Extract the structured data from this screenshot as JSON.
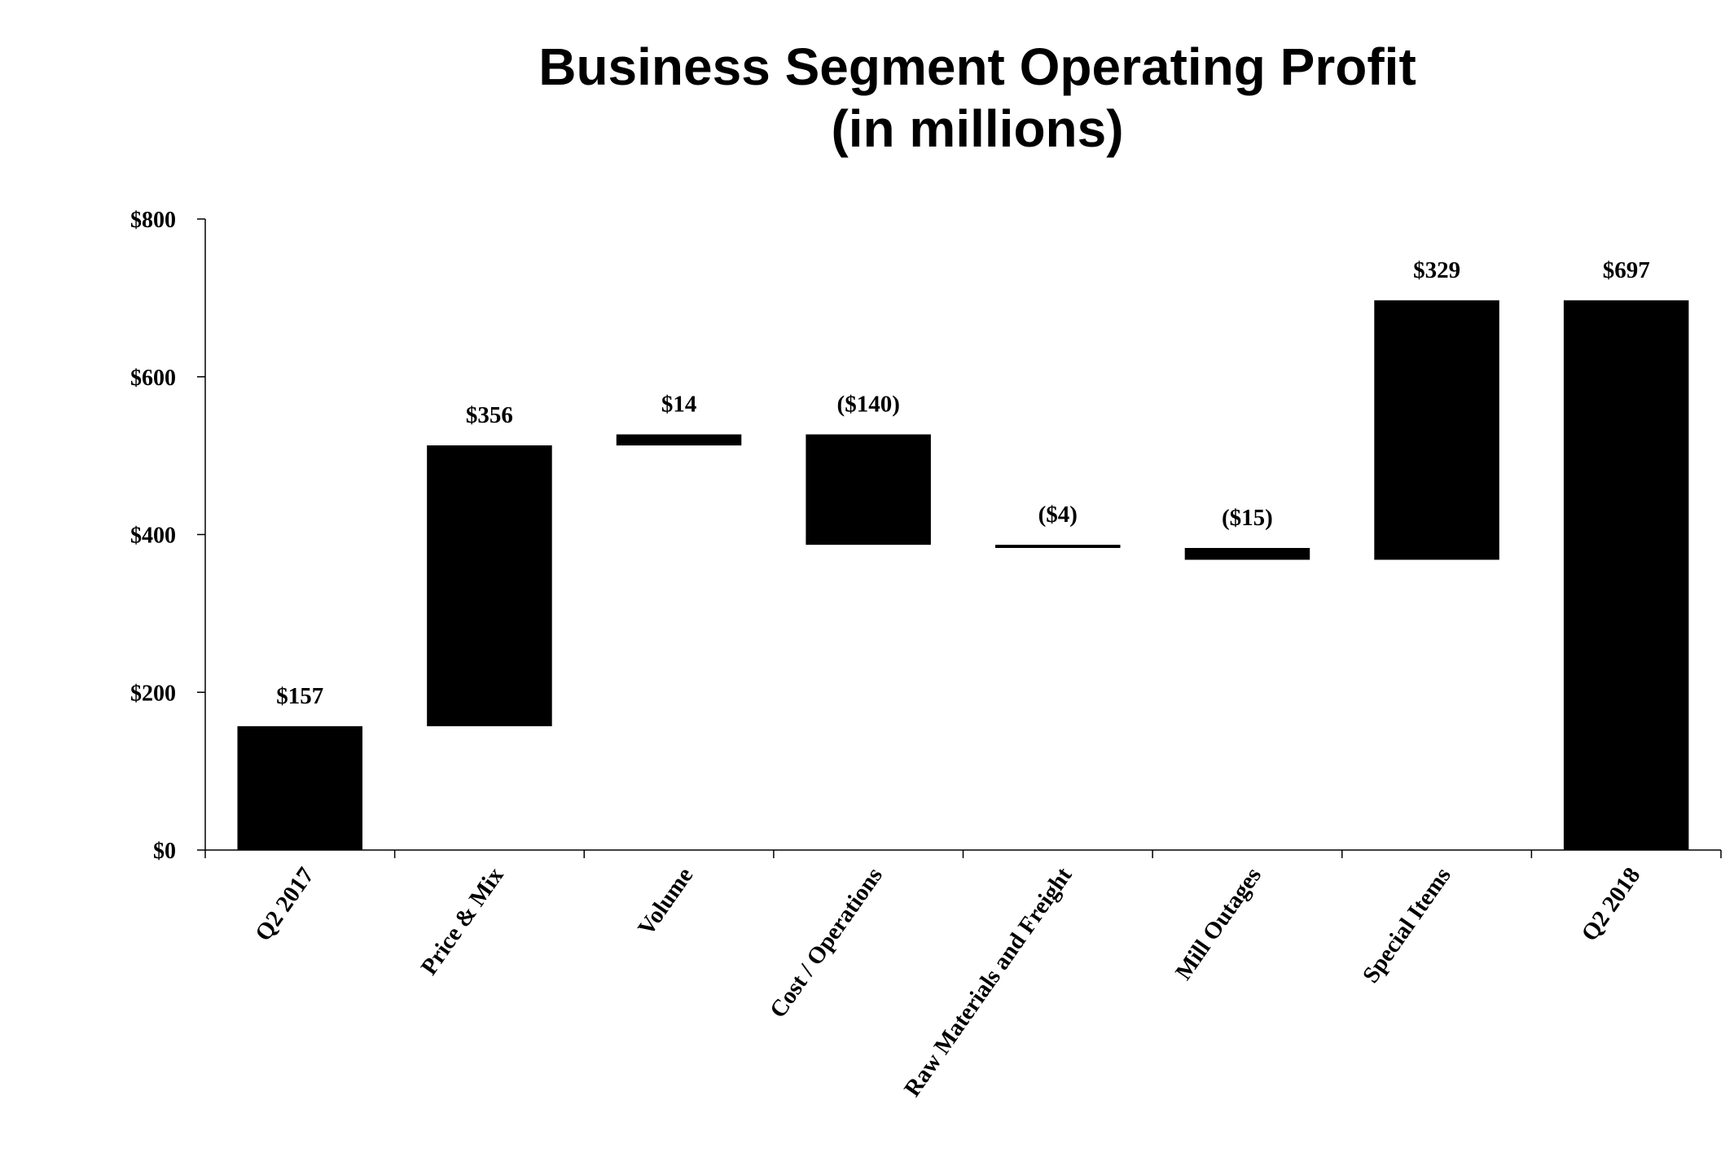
{
  "chart_data": {
    "type": "waterfall",
    "title": "Business Segment Operating Profit",
    "subtitle": "(in millions)",
    "xlabel": "",
    "ylabel": "",
    "ylim": [
      0,
      800
    ],
    "yticks": [
      0,
      200,
      400,
      600,
      800
    ],
    "ytick_labels": [
      "$0",
      "$200",
      "$400",
      "$600",
      "$800"
    ],
    "grid": false,
    "legend": "none",
    "bar_color": "#000000",
    "categories": [
      "Q2 2017",
      "Price & Mix",
      "Volume",
      "Cost / Operations",
      "Raw Materials and Freight",
      "Mill Outages",
      "Special Items",
      "Q2 2018"
    ],
    "values": [
      157,
      356,
      14,
      -140,
      -4,
      -15,
      329,
      697
    ],
    "kinds": [
      "total",
      "delta",
      "delta",
      "delta",
      "delta",
      "delta",
      "delta",
      "total"
    ],
    "labels": [
      "$157",
      "$356",
      "$14",
      "($140)",
      "($4)",
      "($15)",
      "$329",
      "$697"
    ]
  }
}
